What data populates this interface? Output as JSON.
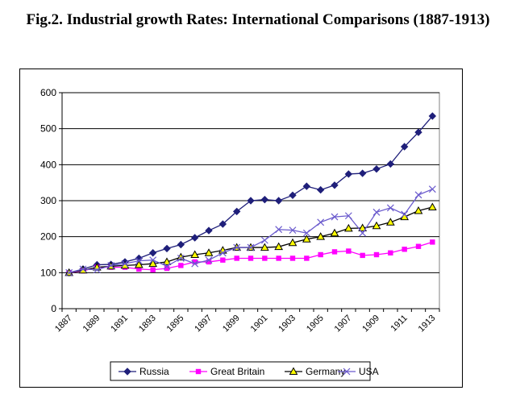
{
  "title": "Fig.2. Industrial growth Rates: International Comparisons (1887-1913)",
  "chart_data": {
    "type": "line",
    "title": "Fig.2. Industrial growth Rates: International Comparisons (1887-1913)",
    "xlabel": "",
    "ylabel": "",
    "x": [
      1887,
      1888,
      1889,
      1890,
      1891,
      1892,
      1893,
      1894,
      1895,
      1896,
      1897,
      1898,
      1899,
      1900,
      1901,
      1902,
      1903,
      1904,
      1905,
      1906,
      1907,
      1908,
      1909,
      1910,
      1911,
      1912,
      1913
    ],
    "x_tick_labels": [
      "1887",
      "1889",
      "1891",
      "1893",
      "1895",
      "1897",
      "1899",
      "1901",
      "1903",
      "1905",
      "1907",
      "1909",
      "1911",
      "1913"
    ],
    "ylim": [
      0,
      600
    ],
    "y_ticks": [
      0,
      100,
      200,
      300,
      400,
      500,
      600
    ],
    "grid": true,
    "legend_position": "bottom",
    "series": [
      {
        "name": "Russia",
        "color": "#1f1f7a",
        "marker": "diamond",
        "values": [
          100,
          110,
          122,
          123,
          130,
          140,
          155,
          167,
          178,
          197,
          217,
          235,
          270,
          300,
          303,
          300,
          315,
          340,
          330,
          343,
          374,
          376,
          388,
          402,
          450,
          490,
          535
        ]
      },
      {
        "name": "Great Britain",
        "color": "#ff00ff",
        "marker": "square",
        "values": [
          100,
          105,
          115,
          115,
          115,
          110,
          108,
          112,
          120,
          130,
          130,
          135,
          140,
          140,
          140,
          140,
          140,
          140,
          150,
          158,
          160,
          148,
          150,
          155,
          165,
          173,
          185
        ]
      },
      {
        "name": "Germany",
        "color": "#000000",
        "fill": "#ffff00",
        "marker": "triangle",
        "values": [
          100,
          107,
          115,
          118,
          120,
          122,
          125,
          130,
          143,
          150,
          155,
          162,
          170,
          170,
          170,
          172,
          183,
          193,
          200,
          210,
          223,
          224,
          230,
          240,
          255,
          272,
          282
        ]
      },
      {
        "name": "USA",
        "color": "#6a5acd",
        "marker": "x",
        "values": [
          100,
          110,
          108,
          120,
          125,
          133,
          135,
          118,
          140,
          125,
          135,
          155,
          170,
          170,
          190,
          220,
          218,
          210,
          240,
          255,
          258,
          210,
          268,
          280,
          262,
          316,
          332
        ]
      }
    ]
  }
}
